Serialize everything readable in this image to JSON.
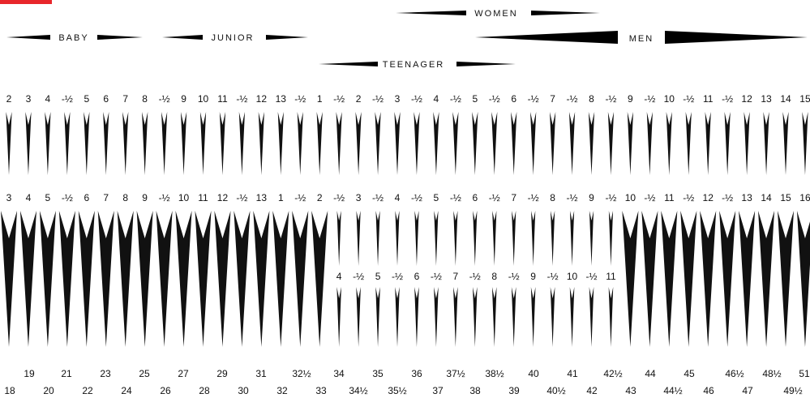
{
  "accent_color": "#e8262b",
  "ink_color": "#111111",
  "groups": {
    "women": "WOMEN",
    "baby": "BABY",
    "junior": "JUNIOR",
    "men": "MEN",
    "teenager": "TEENAGER"
  },
  "chart_data": {
    "type": "diagram",
    "row1_labels": [
      "2",
      "3",
      "4",
      "-½",
      "5",
      "6",
      "7",
      "8",
      "-½",
      "9",
      "10",
      "11",
      "-½",
      "12",
      "13",
      "-½",
      "1",
      "-½",
      "2",
      "-½",
      "3",
      "-½",
      "4",
      "-½",
      "5",
      "-½",
      "6",
      "-½",
      "7",
      "-½",
      "8",
      "-½",
      "9",
      "-½",
      "10",
      "-½",
      "11",
      "-½",
      "12",
      "13",
      "14",
      "15"
    ],
    "row2_labels": [
      "3",
      "4",
      "5",
      "-½",
      "6",
      "7",
      "8",
      "9",
      "-½",
      "10",
      "11",
      "12",
      "-½",
      "13",
      "1",
      "-½",
      "2",
      "-½",
      "3",
      "-½",
      "4",
      "-½",
      "5",
      "-½",
      "6",
      "-½",
      "7",
      "-½",
      "8",
      "-½",
      "9",
      "-½",
      "10",
      "-½",
      "11",
      "-½",
      "12",
      "-½",
      "13",
      "14",
      "15",
      "16"
    ],
    "row3_labels": [
      "4",
      "-½",
      "5",
      "-½",
      "6",
      "-½",
      "7",
      "-½",
      "8",
      "-½",
      "9",
      "-½",
      "10",
      "-½",
      "11"
    ],
    "bottom_top": [
      "19",
      "21",
      "23",
      "25",
      "27",
      "29",
      "31",
      "32½",
      "34",
      "35",
      "36",
      "37½",
      "38½",
      "40",
      "41",
      "42½",
      "44",
      "45",
      "46½",
      "48½",
      "51"
    ],
    "bottom_bottom": [
      "18",
      "20",
      "22",
      "24",
      "26",
      "28",
      "30",
      "32",
      "33",
      "34½",
      "35½",
      "37",
      "38",
      "39",
      "40½",
      "42",
      "43",
      "44½",
      "46",
      "47",
      "49½"
    ]
  }
}
